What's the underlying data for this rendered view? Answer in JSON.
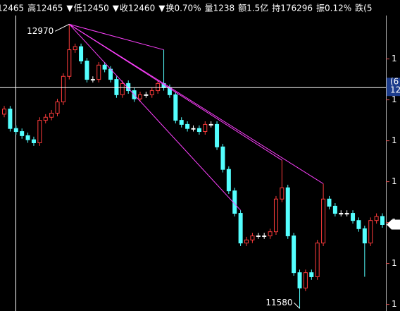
{
  "header": [
    {
      "text": "12465",
      "color": "#ffffff"
    },
    {
      "text": "高12465",
      "color": "#ffffff"
    },
    {
      "text": "▼",
      "color": "#ff4040"
    },
    {
      "text": "低12450",
      "color": "#ff40ff"
    },
    {
      "text": "▼",
      "color": "#ff4040"
    },
    {
      "text": "收12460",
      "color": "#ff40ff"
    },
    {
      "text": "▼",
      "color": "#ff4040"
    },
    {
      "text": "换0.70%",
      "color": "#ffffff"
    },
    {
      "text": "量1238",
      "color": "#ffffff"
    },
    {
      "text": "额1.5亿",
      "color": "#ffffff"
    },
    {
      "text": "持176296",
      "color": "#ffffff"
    },
    {
      "text": "振0.12%",
      "color": "#ffffff"
    },
    {
      "text": "跌(5",
      "color": "#ff40ff"
    }
  ],
  "chart_data": {
    "type": "candlestick",
    "up_color": "#ff3c3c",
    "down_color": "#54ffff",
    "trendline_color": "#ff40ff",
    "axis_label_color": "#e05050",
    "open": [
      12530,
      12555,
      12460,
      12445,
      12425,
      12405,
      12390,
      12500,
      12515,
      12535,
      12590,
      12715,
      12845,
      12860,
      12790,
      12700,
      12700,
      12770,
      12750,
      12700,
      12625,
      12680,
      12645,
      12605,
      12625,
      12625,
      12645,
      12680,
      12660,
      12625,
      12500,
      12480,
      12460,
      12460,
      12445,
      12480,
      12480,
      12370,
      12260,
      12155,
      12045,
      11900,
      11915,
      11935,
      11935,
      11935,
      11955,
      12115,
      12170,
      11935,
      11755,
      11680,
      11755,
      11735,
      11900,
      12115,
      12080,
      12045,
      12045,
      12045,
      12010,
      11970,
      11900,
      12010,
      12030
    ],
    "high": [
      12570,
      12570,
      12475,
      12460,
      12440,
      12420,
      12515,
      12530,
      12550,
      12605,
      12730,
      12970,
      12875,
      12875,
      12805,
      12715,
      12785,
      12785,
      12765,
      12715,
      12695,
      12695,
      12660,
      12640,
      12640,
      12660,
      12695,
      12845,
      12675,
      12640,
      12515,
      12495,
      12475,
      12475,
      12495,
      12495,
      12495,
      12385,
      12275,
      12170,
      12060,
      11930,
      11950,
      11950,
      11950,
      11970,
      12130,
      12305,
      12185,
      11950,
      11770,
      11770,
      11770,
      11915,
      12190,
      12130,
      12095,
      12060,
      12060,
      12060,
      12025,
      11985,
      12025,
      12045,
      12045
    ],
    "low": [
      12515,
      12445,
      12430,
      12410,
      12390,
      12375,
      12375,
      12485,
      12500,
      12520,
      12575,
      12700,
      12830,
      12775,
      12685,
      12685,
      12685,
      12735,
      12685,
      12610,
      12610,
      12630,
      12590,
      12590,
      12610,
      12610,
      12630,
      12645,
      12610,
      12485,
      12465,
      12445,
      12445,
      12430,
      12430,
      12465,
      12355,
      12245,
      12140,
      12030,
      11885,
      11885,
      11900,
      11920,
      11920,
      11920,
      11940,
      12100,
      11920,
      11740,
      11580,
      11665,
      11720,
      11720,
      11885,
      12065,
      12030,
      12030,
      12030,
      11995,
      11955,
      11735,
      11885,
      11995,
      11975
    ],
    "close": [
      12555,
      12460,
      12445,
      12425,
      12405,
      12390,
      12500,
      12515,
      12535,
      12590,
      12715,
      12845,
      12860,
      12790,
      12700,
      12700,
      12770,
      12750,
      12700,
      12625,
      12680,
      12645,
      12605,
      12625,
      12625,
      12645,
      12680,
      12660,
      12625,
      12500,
      12480,
      12460,
      12460,
      12445,
      12480,
      12480,
      12370,
      12260,
      12155,
      12045,
      11900,
      11915,
      11935,
      11935,
      11935,
      11955,
      12115,
      12170,
      11935,
      11755,
      11680,
      11755,
      11735,
      11900,
      12115,
      12080,
      12045,
      12045,
      12045,
      12010,
      11970,
      11900,
      12010,
      12030,
      11990
    ],
    "ylim": [
      11540,
      13040
    ],
    "yticks": [
      {
        "value": 12800,
        "label": "1"
      },
      {
        "value": 12600,
        "label": "1"
      },
      {
        "value": 12400,
        "label": "1"
      },
      {
        "value": 12200,
        "label": "1"
      },
      {
        "value": 12000,
        "label": "1"
      },
      {
        "value": 11800,
        "label": "1"
      },
      {
        "value": 11600,
        "label": "1"
      }
    ],
    "annotations": [
      {
        "text": "12970",
        "value": 12970
      },
      {
        "text": "11580",
        "value": 11580
      }
    ],
    "crosshair": {
      "value": 12660,
      "labels": [
        "(6",
        "12"
      ]
    },
    "last_marker": {
      "value": 11990,
      "label": "1"
    }
  }
}
